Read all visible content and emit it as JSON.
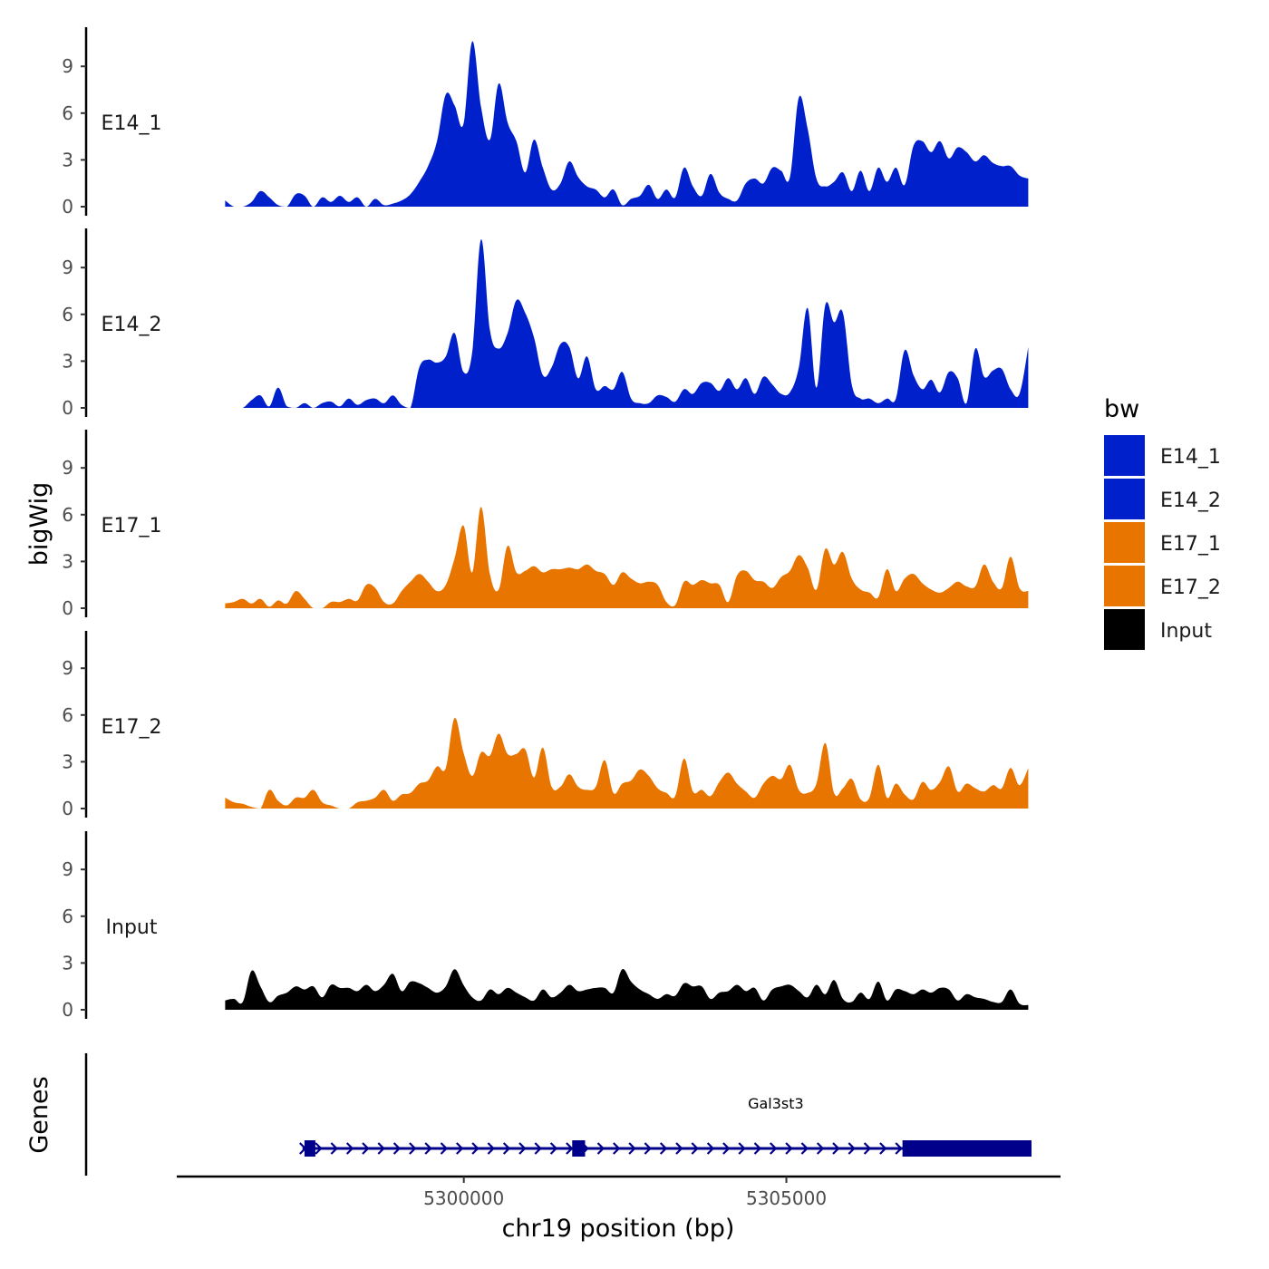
{
  "chart_data": {
    "type": "area",
    "ylabel": "bigWig",
    "xlabel": "chr19 position (bp)",
    "x_ticks": [
      5300000,
      5305000
    ],
    "x_tick_labels": [
      "5300000",
      "5305000"
    ],
    "xlim": [
      5295550,
      5309250
    ],
    "y_ticks": [
      0,
      3,
      6,
      9
    ],
    "y_tick_labels": [
      "0",
      "3",
      "6",
      "9"
    ],
    "ylim": [
      0,
      11.3
    ],
    "x_start": 5296300,
    "x_end": 5308750,
    "legend": {
      "title": "bw",
      "position": "right",
      "entries": [
        {
          "label": "E14_1",
          "color": "#0020cc"
        },
        {
          "label": "E14_2",
          "color": "#0020cc"
        },
        {
          "label": "E17_1",
          "color": "#e87500"
        },
        {
          "label": "E17_2",
          "color": "#e87500"
        },
        {
          "label": "Input",
          "color": "#000000"
        }
      ]
    },
    "series": [
      {
        "name": "E14_1",
        "color": "#0020cc",
        "values": [
          0.4,
          0,
          0,
          0.3,
          1,
          0.6,
          0.1,
          0,
          0.8,
          0.7,
          0,
          0.6,
          0.3,
          0.7,
          0.3,
          0.6,
          0,
          0.5,
          0.1,
          0.2,
          0.4,
          0.8,
          1.6,
          2.6,
          4.2,
          7.2,
          6.5,
          5.3,
          10.6,
          6.4,
          4.3,
          7.9,
          5.4,
          4.2,
          2.2,
          4.3,
          2.5,
          1.1,
          1.5,
          2.9,
          1.9,
          1.3,
          1.1,
          0.6,
          1.1,
          0.1,
          0.5,
          0.7,
          1.4,
          0.5,
          1.1,
          0.6,
          2.5,
          1.3,
          0.7,
          2.1,
          0.9,
          0.5,
          0.4,
          1.5,
          1.8,
          1.5,
          2.5,
          2.3,
          1.9,
          7.0,
          5.0,
          1.8,
          1.3,
          1.6,
          2.2,
          1.0,
          2.3,
          1.0,
          2.5,
          1.6,
          2.5,
          1.4,
          3.9,
          4.2,
          3.5,
          4.2,
          3.1,
          3.8,
          3.5,
          2.9,
          3.3,
          2.8,
          2.6,
          2.6,
          2.0,
          1.8
        ]
      },
      {
        "name": "E14_2",
        "color": "#0020cc",
        "values": [
          0,
          0,
          0,
          0.5,
          0.8,
          0.1,
          1.3,
          0.1,
          0,
          0.3,
          0,
          0.3,
          0.4,
          0.1,
          0.6,
          0.2,
          0.5,
          0.6,
          0.3,
          0.8,
          0.2,
          0,
          2.6,
          3.1,
          2.9,
          3.3,
          4.8,
          2.3,
          3.6,
          10.8,
          5.0,
          3.8,
          4.8,
          6.9,
          6.1,
          4.5,
          2.1,
          2.6,
          4.1,
          3.9,
          1.9,
          3.3,
          1.2,
          1.4,
          1.2,
          2.3,
          0.6,
          0.3,
          0.3,
          0.8,
          0.7,
          0.4,
          1.2,
          0.9,
          1.6,
          1.6,
          1.1,
          1.9,
          1.2,
          1.9,
          0.9,
          2.0,
          1.5,
          0.9,
          1.0,
          2.6,
          6.4,
          1.3,
          6.6,
          5.5,
          6.1,
          1.5,
          0.6,
          0.6,
          0.3,
          0.6,
          0.6,
          3.7,
          2.1,
          1.2,
          1.8,
          1.0,
          2.3,
          1.9,
          0.3,
          3.8,
          2.0,
          2.4,
          2.5,
          1.2,
          0.9,
          3.9
        ]
      },
      {
        "name": "E17_1",
        "color": "#e87500",
        "values": [
          0.3,
          0.4,
          0.6,
          0.3,
          0.6,
          0.1,
          0.5,
          0.3,
          1.1,
          0.6,
          0,
          0,
          0.4,
          0.4,
          0.6,
          0.5,
          1.5,
          1.3,
          0.4,
          0.3,
          1.1,
          1.7,
          2.2,
          1.7,
          1.1,
          1.5,
          3.2,
          5.3,
          2.3,
          6.5,
          2.2,
          1.2,
          4.0,
          2.3,
          2.4,
          2.7,
          2.3,
          2.5,
          2.5,
          2.6,
          2.5,
          2.8,
          2.4,
          2.2,
          1.5,
          2.3,
          1.9,
          1.6,
          1.7,
          1.5,
          0.4,
          0.2,
          1.7,
          1.5,
          1.8,
          1.6,
          1.5,
          0.4,
          2.1,
          2.4,
          1.8,
          1.7,
          1.3,
          2.0,
          2.4,
          3.4,
          2.6,
          1.2,
          3.8,
          2.8,
          3.6,
          1.9,
          1.2,
          1.0,
          0.7,
          2.5,
          1.1,
          1.9,
          2.2,
          1.6,
          1.2,
          1.0,
          1.3,
          1.7,
          1.4,
          1.4,
          2.8,
          1.7,
          1.3,
          3.3,
          1.3,
          1.1
        ]
      },
      {
        "name": "E17_2",
        "color": "#e87500",
        "values": [
          0.7,
          0.4,
          0.3,
          0.1,
          0,
          1.2,
          0.5,
          0.2,
          0.7,
          0.7,
          1.2,
          0.4,
          0.2,
          0,
          0,
          0.4,
          0.5,
          0.7,
          1.2,
          0.5,
          0.9,
          1.0,
          1.6,
          1.8,
          2.7,
          2.6,
          5.8,
          3.6,
          2.1,
          3.6,
          3.4,
          4.8,
          3.5,
          3.5,
          3.8,
          2.0,
          3.9,
          1.4,
          1.4,
          2.2,
          1.4,
          1.2,
          1.4,
          3.1,
          1.0,
          1.6,
          1.8,
          2.5,
          2.1,
          1.3,
          1.0,
          0.8,
          3.2,
          1.1,
          1.2,
          0.8,
          1.7,
          2.3,
          1.6,
          1.1,
          0.7,
          1.6,
          2.1,
          1.9,
          2.8,
          1.2,
          1.0,
          1.6,
          4.2,
          1.0,
          1.3,
          1.9,
          0.6,
          0.7,
          2.8,
          0.7,
          1.6,
          0.9,
          0.6,
          1.7,
          1.2,
          1.7,
          2.7,
          1.1,
          1.6,
          1.3,
          1.1,
          1.5,
          1.3,
          2.6,
          1.5,
          2.6
        ]
      },
      {
        "name": "Input",
        "color": "#000000",
        "values": [
          0.6,
          0.7,
          0.5,
          2.5,
          1.5,
          0.5,
          0.9,
          1.1,
          1.5,
          1.3,
          1.5,
          0.8,
          1.6,
          1.4,
          1.4,
          1.2,
          1.6,
          1.2,
          1.6,
          2.3,
          1.2,
          1.8,
          1.7,
          1.4,
          1.1,
          1.5,
          2.6,
          1.6,
          0.8,
          0.6,
          1.3,
          1.0,
          1.4,
          1.1,
          0.8,
          0.6,
          1.3,
          0.8,
          1.1,
          1.6,
          1.2,
          1.3,
          1.4,
          1.4,
          1.1,
          2.6,
          1.8,
          1.3,
          1.0,
          0.7,
          1.0,
          0.9,
          1.7,
          1.5,
          1.5,
          0.7,
          1.1,
          1.2,
          1.6,
          1.2,
          1.4,
          0.6,
          1.3,
          1.5,
          1.6,
          1.2,
          0.8,
          1.6,
          1.0,
          1.9,
          0.7,
          0.5,
          1.1,
          0.7,
          1.8,
          0.6,
          1.3,
          1.2,
          1.0,
          1.3,
          1.1,
          1.4,
          1.3,
          0.6,
          1.0,
          0.8,
          0.7,
          0.5,
          0.5,
          1.3,
          0.4,
          0.3
        ]
      }
    ],
    "genes_track": {
      "label": "Genes",
      "color": "#00008b",
      "genes": [
        {
          "name": "Gal3st3",
          "start": 5297500,
          "end": 5308800,
          "strand": "+",
          "exons": [
            [
              5297530,
              5297660
            ],
            [
              5301680,
              5301880
            ],
            [
              5306800,
              5308800
            ]
          ]
        }
      ]
    }
  }
}
